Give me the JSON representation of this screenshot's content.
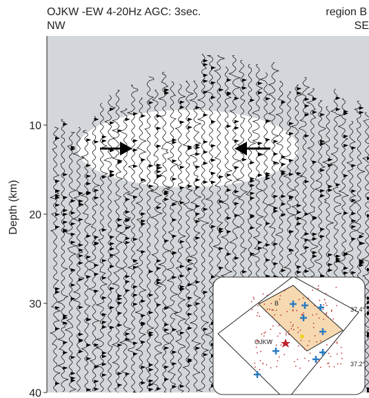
{
  "chart_data": {
    "type": "wiggle",
    "title": "OJKW -EW  4-20Hz AGC: 3sec.",
    "region": "region B",
    "left_label": "NW",
    "right_label": "SE",
    "y_label": "Depth (km)",
    "ylim": [
      0,
      40
    ],
    "yticks": [
      10,
      20,
      30,
      40
    ],
    "y_inverted": true
  },
  "inset": {
    "labels": [
      "B",
      "OJKW",
      "37.4°",
      "37.2°"
    ]
  }
}
